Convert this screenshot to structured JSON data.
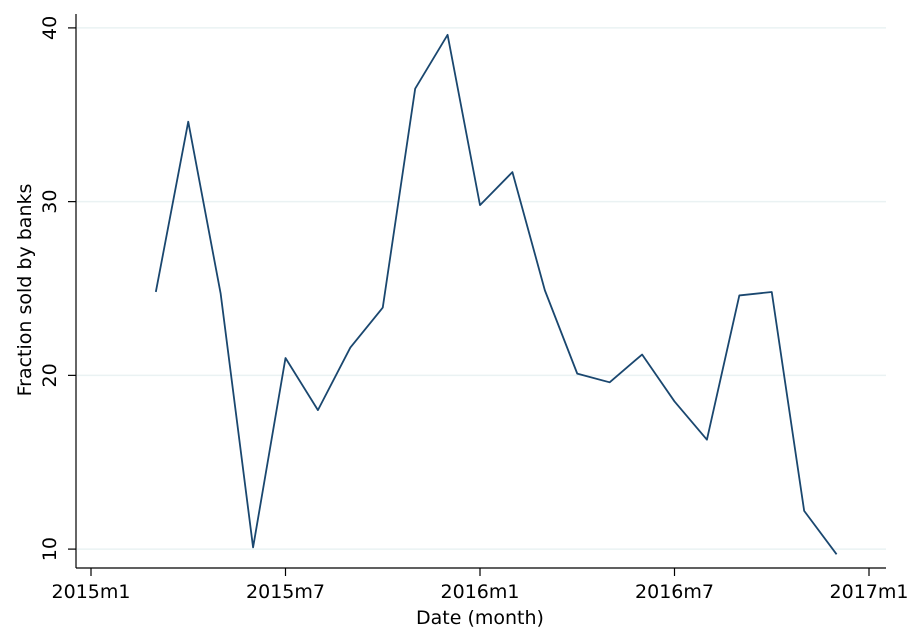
{
  "chart_data": {
    "type": "line",
    "xlabel": "Date (month)",
    "ylabel": "Fraction sold by banks",
    "x": [
      "2015m3",
      "2015m4",
      "2015m5",
      "2015m6",
      "2015m7",
      "2015m8",
      "2015m9",
      "2015m10",
      "2015m11",
      "2015m12",
      "2016m1",
      "2016m2",
      "2016m3",
      "2016m4",
      "2016m5",
      "2016m6",
      "2016m7",
      "2016m8",
      "2016m9",
      "2016m10",
      "2016m11",
      "2016m12"
    ],
    "series": [
      {
        "name": "Fraction sold by banks",
        "color": "#1a476f",
        "values": [
          24.8,
          34.6,
          24.7,
          10.1,
          21.0,
          18.0,
          21.6,
          23.9,
          36.5,
          39.6,
          29.8,
          31.7,
          24.9,
          20.1,
          19.6,
          21.2,
          18.5,
          16.3,
          24.6,
          24.8,
          12.2,
          9.7
        ]
      }
    ],
    "xlim": [
      "2015m1",
      "2017m1"
    ],
    "xticks": [
      "2015m1",
      "2015m7",
      "2016m1",
      "2016m7",
      "2017m1"
    ],
    "ylim": [
      9.2,
      40.8
    ],
    "yticks": [
      10,
      20,
      30,
      40
    ],
    "grid": true
  }
}
